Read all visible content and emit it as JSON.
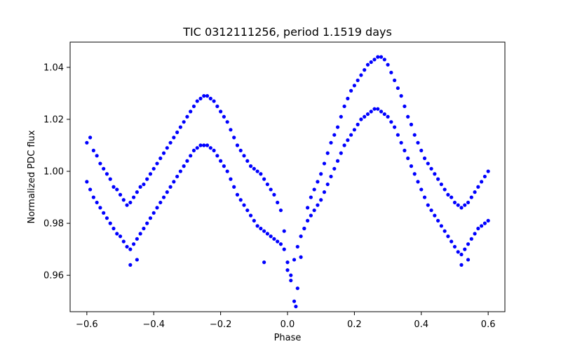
{
  "chart_data": {
    "type": "scatter",
    "title": "TIC 0312111256, period 1.1519 days",
    "xlabel": "Phase",
    "ylabel": "Normalized PDC flux",
    "xlim": [
      -0.65,
      0.65
    ],
    "ylim": [
      0.946,
      1.0497
    ],
    "xticks": [
      -0.6,
      -0.4,
      -0.2,
      0.0,
      0.2,
      0.4,
      0.6
    ],
    "xtick_labels": [
      "−0.6",
      "−0.4",
      "−0.2",
      "0.0",
      "0.2",
      "0.4",
      "0.6"
    ],
    "yticks": [
      0.96,
      0.98,
      1.0,
      1.02,
      1.04
    ],
    "ytick_labels": [
      "0.96",
      "0.98",
      "1.00",
      "1.02",
      "1.04"
    ],
    "grid": false,
    "marker_color": "#0000ff",
    "series": [
      {
        "points": [
          [
            -0.6,
            1.011
          ],
          [
            -0.59,
            1.013
          ],
          [
            -0.58,
            1.008
          ],
          [
            -0.57,
            1.006
          ],
          [
            -0.56,
            1.003
          ],
          [
            -0.55,
            1.001
          ],
          [
            -0.54,
            0.999
          ],
          [
            -0.53,
            0.997
          ],
          [
            -0.52,
            0.994
          ],
          [
            -0.51,
            0.993
          ],
          [
            -0.5,
            0.991
          ],
          [
            -0.49,
            0.989
          ],
          [
            -0.48,
            0.987
          ],
          [
            -0.47,
            0.988
          ],
          [
            -0.46,
            0.99
          ],
          [
            -0.45,
            0.992
          ],
          [
            -0.44,
            0.994
          ],
          [
            -0.43,
            0.995
          ],
          [
            -0.42,
            0.997
          ],
          [
            -0.41,
            0.999
          ],
          [
            -0.4,
            1.001
          ],
          [
            -0.39,
            1.003
          ],
          [
            -0.38,
            1.005
          ],
          [
            -0.37,
            1.007
          ],
          [
            -0.36,
            1.009
          ],
          [
            -0.35,
            1.011
          ],
          [
            -0.34,
            1.013
          ],
          [
            -0.33,
            1.015
          ],
          [
            -0.32,
            1.017
          ],
          [
            -0.31,
            1.019
          ],
          [
            -0.3,
            1.021
          ],
          [
            -0.29,
            1.023
          ],
          [
            -0.28,
            1.025
          ],
          [
            -0.27,
            1.027
          ],
          [
            -0.26,
            1.028
          ],
          [
            -0.25,
            1.029
          ],
          [
            -0.24,
            1.029
          ],
          [
            -0.23,
            1.028
          ],
          [
            -0.22,
            1.027
          ],
          [
            -0.21,
            1.025
          ],
          [
            -0.2,
            1.023
          ],
          [
            -0.19,
            1.021
          ],
          [
            -0.18,
            1.019
          ],
          [
            -0.17,
            1.016
          ],
          [
            -0.16,
            1.013
          ],
          [
            -0.15,
            1.01
          ],
          [
            -0.14,
            1.008
          ],
          [
            -0.13,
            1.006
          ],
          [
            -0.12,
            1.004
          ],
          [
            -0.11,
            1.002
          ],
          [
            -0.1,
            1.001
          ],
          [
            -0.09,
            1.0
          ],
          [
            -0.08,
            0.999
          ],
          [
            -0.07,
            0.997
          ],
          [
            -0.06,
            0.995
          ],
          [
            -0.05,
            0.993
          ],
          [
            -0.04,
            0.991
          ],
          [
            -0.03,
            0.988
          ],
          [
            -0.02,
            0.985
          ],
          [
            -0.01,
            0.977
          ],
          [
            0.0,
            0.965
          ],
          [
            0.01,
            0.958
          ],
          [
            0.02,
            0.95
          ],
          [
            0.025,
            0.948
          ],
          [
            0.03,
            0.955
          ],
          [
            0.04,
            0.967
          ],
          [
            0.05,
            0.978
          ],
          [
            0.06,
            0.986
          ],
          [
            0.07,
            0.99
          ],
          [
            0.08,
            0.993
          ],
          [
            0.09,
            0.996
          ],
          [
            0.1,
            0.999
          ],
          [
            0.11,
            1.003
          ],
          [
            0.12,
            1.007
          ],
          [
            0.13,
            1.011
          ],
          [
            0.14,
            1.014
          ],
          [
            0.15,
            1.017
          ],
          [
            0.16,
            1.021
          ],
          [
            0.17,
            1.025
          ],
          [
            0.18,
            1.028
          ],
          [
            0.19,
            1.031
          ],
          [
            0.2,
            1.033
          ],
          [
            0.21,
            1.035
          ],
          [
            0.22,
            1.037
          ],
          [
            0.23,
            1.039
          ],
          [
            0.24,
            1.041
          ],
          [
            0.25,
            1.042
          ],
          [
            0.26,
            1.043
          ],
          [
            0.27,
            1.044
          ],
          [
            0.28,
            1.044
          ],
          [
            0.29,
            1.043
          ],
          [
            0.3,
            1.041
          ],
          [
            0.31,
            1.038
          ],
          [
            0.32,
            1.035
          ],
          [
            0.33,
            1.032
          ],
          [
            0.34,
            1.029
          ],
          [
            0.35,
            1.025
          ],
          [
            0.36,
            1.021
          ],
          [
            0.37,
            1.018
          ],
          [
            0.38,
            1.014
          ],
          [
            0.39,
            1.011
          ],
          [
            0.4,
            1.008
          ],
          [
            0.41,
            1.005
          ],
          [
            0.42,
            1.003
          ],
          [
            0.43,
            1.001
          ],
          [
            0.44,
            0.999
          ],
          [
            0.45,
            0.997
          ],
          [
            0.46,
            0.995
          ],
          [
            0.47,
            0.993
          ],
          [
            0.48,
            0.991
          ],
          [
            0.49,
            0.99
          ],
          [
            0.5,
            0.988
          ],
          [
            0.51,
            0.987
          ],
          [
            0.52,
            0.986
          ],
          [
            0.53,
            0.987
          ],
          [
            0.54,
            0.988
          ],
          [
            0.55,
            0.99
          ],
          [
            0.56,
            0.992
          ],
          [
            0.57,
            0.994
          ],
          [
            0.58,
            0.996
          ],
          [
            0.59,
            0.998
          ],
          [
            0.6,
            1.0
          ],
          [
            -0.6,
            0.996
          ],
          [
            -0.59,
            0.993
          ],
          [
            -0.58,
            0.99
          ],
          [
            -0.57,
            0.988
          ],
          [
            -0.56,
            0.986
          ],
          [
            -0.55,
            0.984
          ],
          [
            -0.54,
            0.982
          ],
          [
            -0.53,
            0.98
          ],
          [
            -0.52,
            0.978
          ],
          [
            -0.51,
            0.976
          ],
          [
            -0.5,
            0.975
          ],
          [
            -0.49,
            0.973
          ],
          [
            -0.48,
            0.971
          ],
          [
            -0.47,
            0.97
          ],
          [
            -0.46,
            0.972
          ],
          [
            -0.45,
            0.974
          ],
          [
            -0.44,
            0.976
          ],
          [
            -0.43,
            0.978
          ],
          [
            -0.42,
            0.98
          ],
          [
            -0.41,
            0.982
          ],
          [
            -0.4,
            0.984
          ],
          [
            -0.39,
            0.986
          ],
          [
            -0.38,
            0.988
          ],
          [
            -0.37,
            0.99
          ],
          [
            -0.36,
            0.992
          ],
          [
            -0.35,
            0.994
          ],
          [
            -0.34,
            0.996
          ],
          [
            -0.33,
            0.998
          ],
          [
            -0.32,
            1.0
          ],
          [
            -0.31,
            1.002
          ],
          [
            -0.3,
            1.004
          ],
          [
            -0.29,
            1.006
          ],
          [
            -0.28,
            1.008
          ],
          [
            -0.27,
            1.009
          ],
          [
            -0.26,
            1.01
          ],
          [
            -0.25,
            1.01
          ],
          [
            -0.24,
            1.01
          ],
          [
            -0.23,
            1.009
          ],
          [
            -0.22,
            1.008
          ],
          [
            -0.21,
            1.006
          ],
          [
            -0.2,
            1.004
          ],
          [
            -0.19,
            1.002
          ],
          [
            -0.18,
            1.0
          ],
          [
            -0.17,
            0.997
          ],
          [
            -0.16,
            0.994
          ],
          [
            -0.15,
            0.991
          ],
          [
            -0.14,
            0.989
          ],
          [
            -0.13,
            0.987
          ],
          [
            -0.12,
            0.985
          ],
          [
            -0.11,
            0.983
          ],
          [
            -0.1,
            0.981
          ],
          [
            -0.09,
            0.979
          ],
          [
            -0.08,
            0.978
          ],
          [
            -0.07,
            0.977
          ],
          [
            -0.06,
            0.976
          ],
          [
            -0.05,
            0.975
          ],
          [
            -0.04,
            0.974
          ],
          [
            -0.03,
            0.973
          ],
          [
            -0.02,
            0.972
          ],
          [
            -0.01,
            0.97
          ],
          [
            0.01,
            0.96
          ],
          [
            0.02,
            0.966
          ],
          [
            0.03,
            0.971
          ],
          [
            0.04,
            0.975
          ],
          [
            0.05,
            0.978
          ],
          [
            0.06,
            0.981
          ],
          [
            0.07,
            0.983
          ],
          [
            0.08,
            0.985
          ],
          [
            0.09,
            0.987
          ],
          [
            0.1,
            0.989
          ],
          [
            0.11,
            0.992
          ],
          [
            0.12,
            0.995
          ],
          [
            0.13,
            0.998
          ],
          [
            0.14,
            1.001
          ],
          [
            0.15,
            1.004
          ],
          [
            0.16,
            1.007
          ],
          [
            0.17,
            1.01
          ],
          [
            0.18,
            1.012
          ],
          [
            0.19,
            1.014
          ],
          [
            0.2,
            1.016
          ],
          [
            0.21,
            1.018
          ],
          [
            0.22,
            1.02
          ],
          [
            0.23,
            1.021
          ],
          [
            0.24,
            1.022
          ],
          [
            0.25,
            1.023
          ],
          [
            0.26,
            1.024
          ],
          [
            0.27,
            1.024
          ],
          [
            0.28,
            1.023
          ],
          [
            0.29,
            1.022
          ],
          [
            0.3,
            1.021
          ],
          [
            0.31,
            1.019
          ],
          [
            0.32,
            1.017
          ],
          [
            0.33,
            1.014
          ],
          [
            0.34,
            1.011
          ],
          [
            0.35,
            1.008
          ],
          [
            0.36,
            1.005
          ],
          [
            0.37,
            1.002
          ],
          [
            0.38,
            0.999
          ],
          [
            0.39,
            0.996
          ],
          [
            0.4,
            0.993
          ],
          [
            0.41,
            0.99
          ],
          [
            0.42,
            0.987
          ],
          [
            0.43,
            0.985
          ],
          [
            0.44,
            0.983
          ],
          [
            0.45,
            0.981
          ],
          [
            0.46,
            0.979
          ],
          [
            0.47,
            0.977
          ],
          [
            0.48,
            0.975
          ],
          [
            0.49,
            0.973
          ],
          [
            0.5,
            0.971
          ],
          [
            0.51,
            0.969
          ],
          [
            0.52,
            0.968
          ],
          [
            0.53,
            0.97
          ],
          [
            0.54,
            0.972
          ],
          [
            0.55,
            0.974
          ],
          [
            0.56,
            0.976
          ],
          [
            0.57,
            0.978
          ],
          [
            0.58,
            0.979
          ],
          [
            0.59,
            0.98
          ],
          [
            0.6,
            0.981
          ],
          [
            -0.47,
            0.964
          ],
          [
            -0.45,
            0.966
          ],
          [
            0.52,
            0.964
          ],
          [
            0.54,
            0.966
          ],
          [
            -0.07,
            0.965
          ],
          [
            0.0,
            0.962
          ]
        ]
      }
    ]
  }
}
